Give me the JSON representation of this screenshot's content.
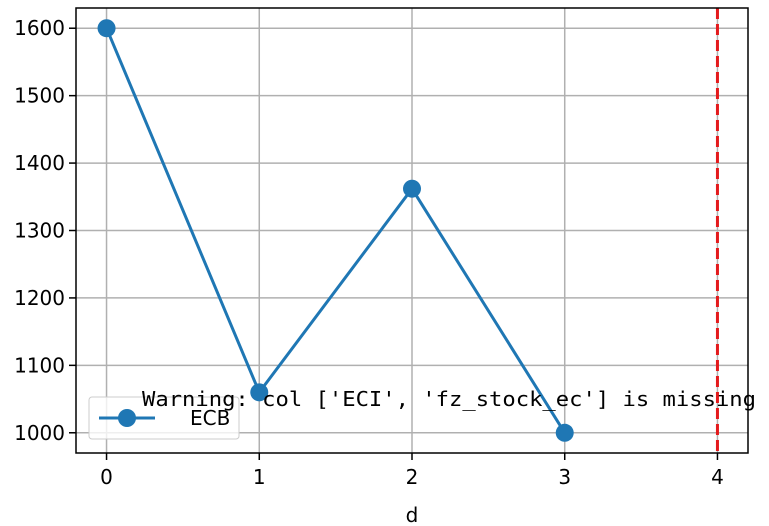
{
  "chart_data": {
    "type": "line",
    "x": [
      0,
      1,
      2,
      3
    ],
    "series": [
      {
        "name": "ECB",
        "values": [
          1600,
          1060,
          1362,
          1000
        ]
      }
    ],
    "xlabel": "d",
    "ylabel": "",
    "xlim": [
      -0.2,
      4.2
    ],
    "ylim": [
      970,
      1630
    ],
    "xticks": [
      0,
      1,
      2,
      3,
      4
    ],
    "yticks": [
      1000,
      1100,
      1200,
      1300,
      1400,
      1500,
      1600
    ],
    "grid": true,
    "legend_position": "lower-left",
    "reference_line": {
      "x": 4,
      "style": "dashed",
      "color": "#e41a1c"
    },
    "annotation": "Warning: col ['ECI', 'fz_stock_ec'] is missing",
    "colors": {
      "series": "#1f77b4",
      "grid": "#b0b0b0",
      "reference": "#e41a1c"
    }
  }
}
